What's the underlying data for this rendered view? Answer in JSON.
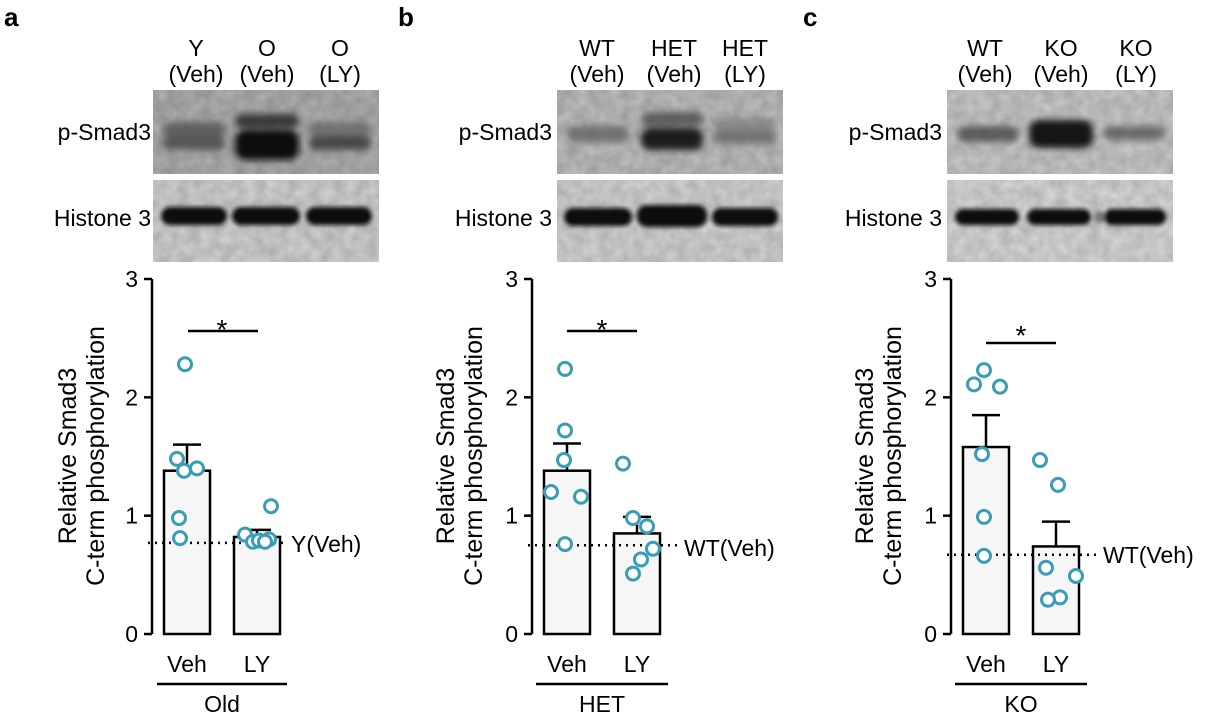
{
  "panels": [
    {
      "letter": "a",
      "lanes": [
        [
          "Y",
          "(Veh)"
        ],
        [
          "O",
          "(Veh)"
        ],
        [
          "O",
          "(LY)"
        ]
      ],
      "blot_labels": [
        "p-Smad3",
        "Histone 3"
      ],
      "ylabel": [
        "Relative Smad3",
        "C-term phosphorylation"
      ],
      "group_label": "Old",
      "ref_label": "Y(Veh)",
      "significance": "*"
    },
    {
      "letter": "b",
      "lanes": [
        [
          "WT",
          "(Veh)"
        ],
        [
          "HET",
          "(Veh)"
        ],
        [
          "HET",
          "(LY)"
        ]
      ],
      "blot_labels": [
        "p-Smad3",
        "Histone 3"
      ],
      "ylabel": [
        "Relative Smad3",
        "C-term phosphorylation"
      ],
      "group_label": "HET",
      "ref_label": "WT(Veh)",
      "significance": "*"
    },
    {
      "letter": "c",
      "lanes": [
        [
          "WT",
          "(Veh)"
        ],
        [
          "KO",
          "(Veh)"
        ],
        [
          "KO",
          "(LY)"
        ]
      ],
      "blot_labels": [
        "p-Smad3",
        "Histone 3"
      ],
      "ylabel": [
        "Relative Smad3",
        "C-term phosphorylation"
      ],
      "group_label": "KO",
      "ref_label": "WT(Veh)",
      "significance": "*"
    }
  ],
  "colors": {
    "points": "#3a9db5",
    "bar_fill": "#f6f6f6",
    "axis": "#000000"
  },
  "chart_data": [
    {
      "type": "bar",
      "categories": [
        "Veh",
        "LY"
      ],
      "ylim": [
        0,
        3
      ],
      "yticks": [
        0,
        1,
        2,
        3
      ],
      "means": [
        1.38,
        0.82
      ],
      "errors": [
        0.22,
        0.06
      ],
      "points": [
        [
          2.28,
          1.48,
          1.38,
          1.4,
          0.98,
          0.81
        ],
        [
          1.08,
          0.84,
          0.78,
          0.79,
          0.8,
          0.78
        ]
      ],
      "reference_value": 0.77
    },
    {
      "type": "bar",
      "categories": [
        "Veh",
        "LY"
      ],
      "ylim": [
        0,
        3
      ],
      "yticks": [
        0,
        1,
        2,
        3
      ],
      "means": [
        1.38,
        0.85
      ],
      "errors": [
        0.23,
        0.14
      ],
      "points": [
        [
          2.24,
          1.72,
          1.2,
          1.47,
          1.16,
          0.76
        ],
        [
          1.44,
          0.98,
          0.91,
          0.72,
          0.63,
          0.51
        ]
      ],
      "reference_value": 0.75
    },
    {
      "type": "bar",
      "categories": [
        "Veh",
        "LY"
      ],
      "ylim": [
        0,
        3
      ],
      "yticks": [
        0,
        1,
        2,
        3
      ],
      "means": [
        1.58,
        0.74
      ],
      "errors": [
        0.27,
        0.21
      ],
      "points": [
        [
          2.23,
          2.09,
          2.11,
          1.52,
          0.99,
          0.66
        ],
        [
          1.47,
          1.26,
          0.56,
          0.49,
          0.31,
          0.29
        ]
      ],
      "reference_value": 0.67
    }
  ]
}
